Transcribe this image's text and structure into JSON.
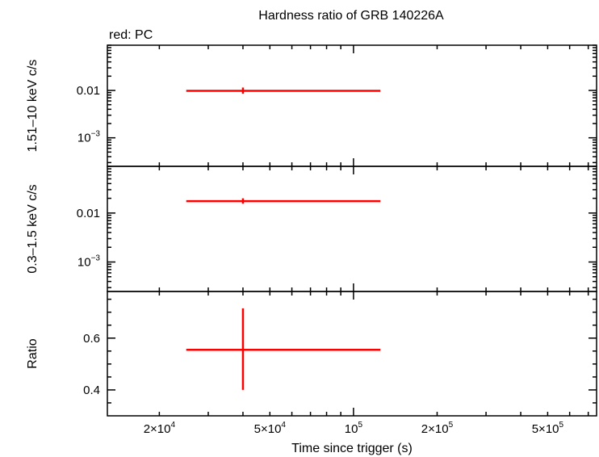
{
  "chart_data": {
    "type": "scatter",
    "title": "Hardness ratio of GRB 140226A",
    "legend_note": "red: PC",
    "xlabel": "Time since trigger (s)",
    "x_scale": "log",
    "xlim": [
      13000,
      750000
    ],
    "x_ticks": [
      {
        "value": 20000,
        "mant": "2×10",
        "exp": "4"
      },
      {
        "value": 50000,
        "mant": "5×10",
        "exp": "4"
      },
      {
        "value": 100000,
        "mant": "10",
        "exp": "5"
      },
      {
        "value": 200000,
        "mant": "2×10",
        "exp": "5"
      },
      {
        "value": 500000,
        "mant": "5×10",
        "exp": "5"
      }
    ],
    "series_color": "#ff0000",
    "panels": [
      {
        "name": "hard-band",
        "ylabel": "1.51–10 keV c/s",
        "y_scale": "log",
        "ylim": [
          0.00025,
          0.09
        ],
        "y_ticks": [
          {
            "value": 0.01,
            "text": "0.01"
          },
          {
            "value": 0.001,
            "mant": "10",
            "exp": "−3"
          }
        ],
        "points": [
          {
            "x": 40000,
            "xlo": 25000,
            "xhi": 125000,
            "y": 0.0098,
            "ylo": 0.0085,
            "yhi": 0.0115
          }
        ]
      },
      {
        "name": "soft-band",
        "ylabel": "0.3–1.5 keV c/s",
        "y_scale": "log",
        "ylim": [
          0.00025,
          0.09
        ],
        "y_ticks": [
          {
            "value": 0.01,
            "text": "0.01"
          },
          {
            "value": 0.001,
            "mant": "10",
            "exp": "−3"
          }
        ],
        "points": [
          {
            "x": 40000,
            "xlo": 25000,
            "xhi": 125000,
            "y": 0.0175,
            "ylo": 0.0155,
            "yhi": 0.02
          }
        ]
      },
      {
        "name": "ratio",
        "ylabel": "Ratio",
        "y_scale": "linear",
        "ylim": [
          0.3,
          0.78
        ],
        "y_ticks": [
          {
            "value": 0.6,
            "text": "0.6"
          },
          {
            "value": 0.4,
            "text": "0.4"
          }
        ],
        "points": [
          {
            "x": 40000,
            "xlo": 25000,
            "xhi": 125000,
            "y": 0.555,
            "ylo": 0.4,
            "yhi": 0.715
          }
        ]
      }
    ]
  }
}
